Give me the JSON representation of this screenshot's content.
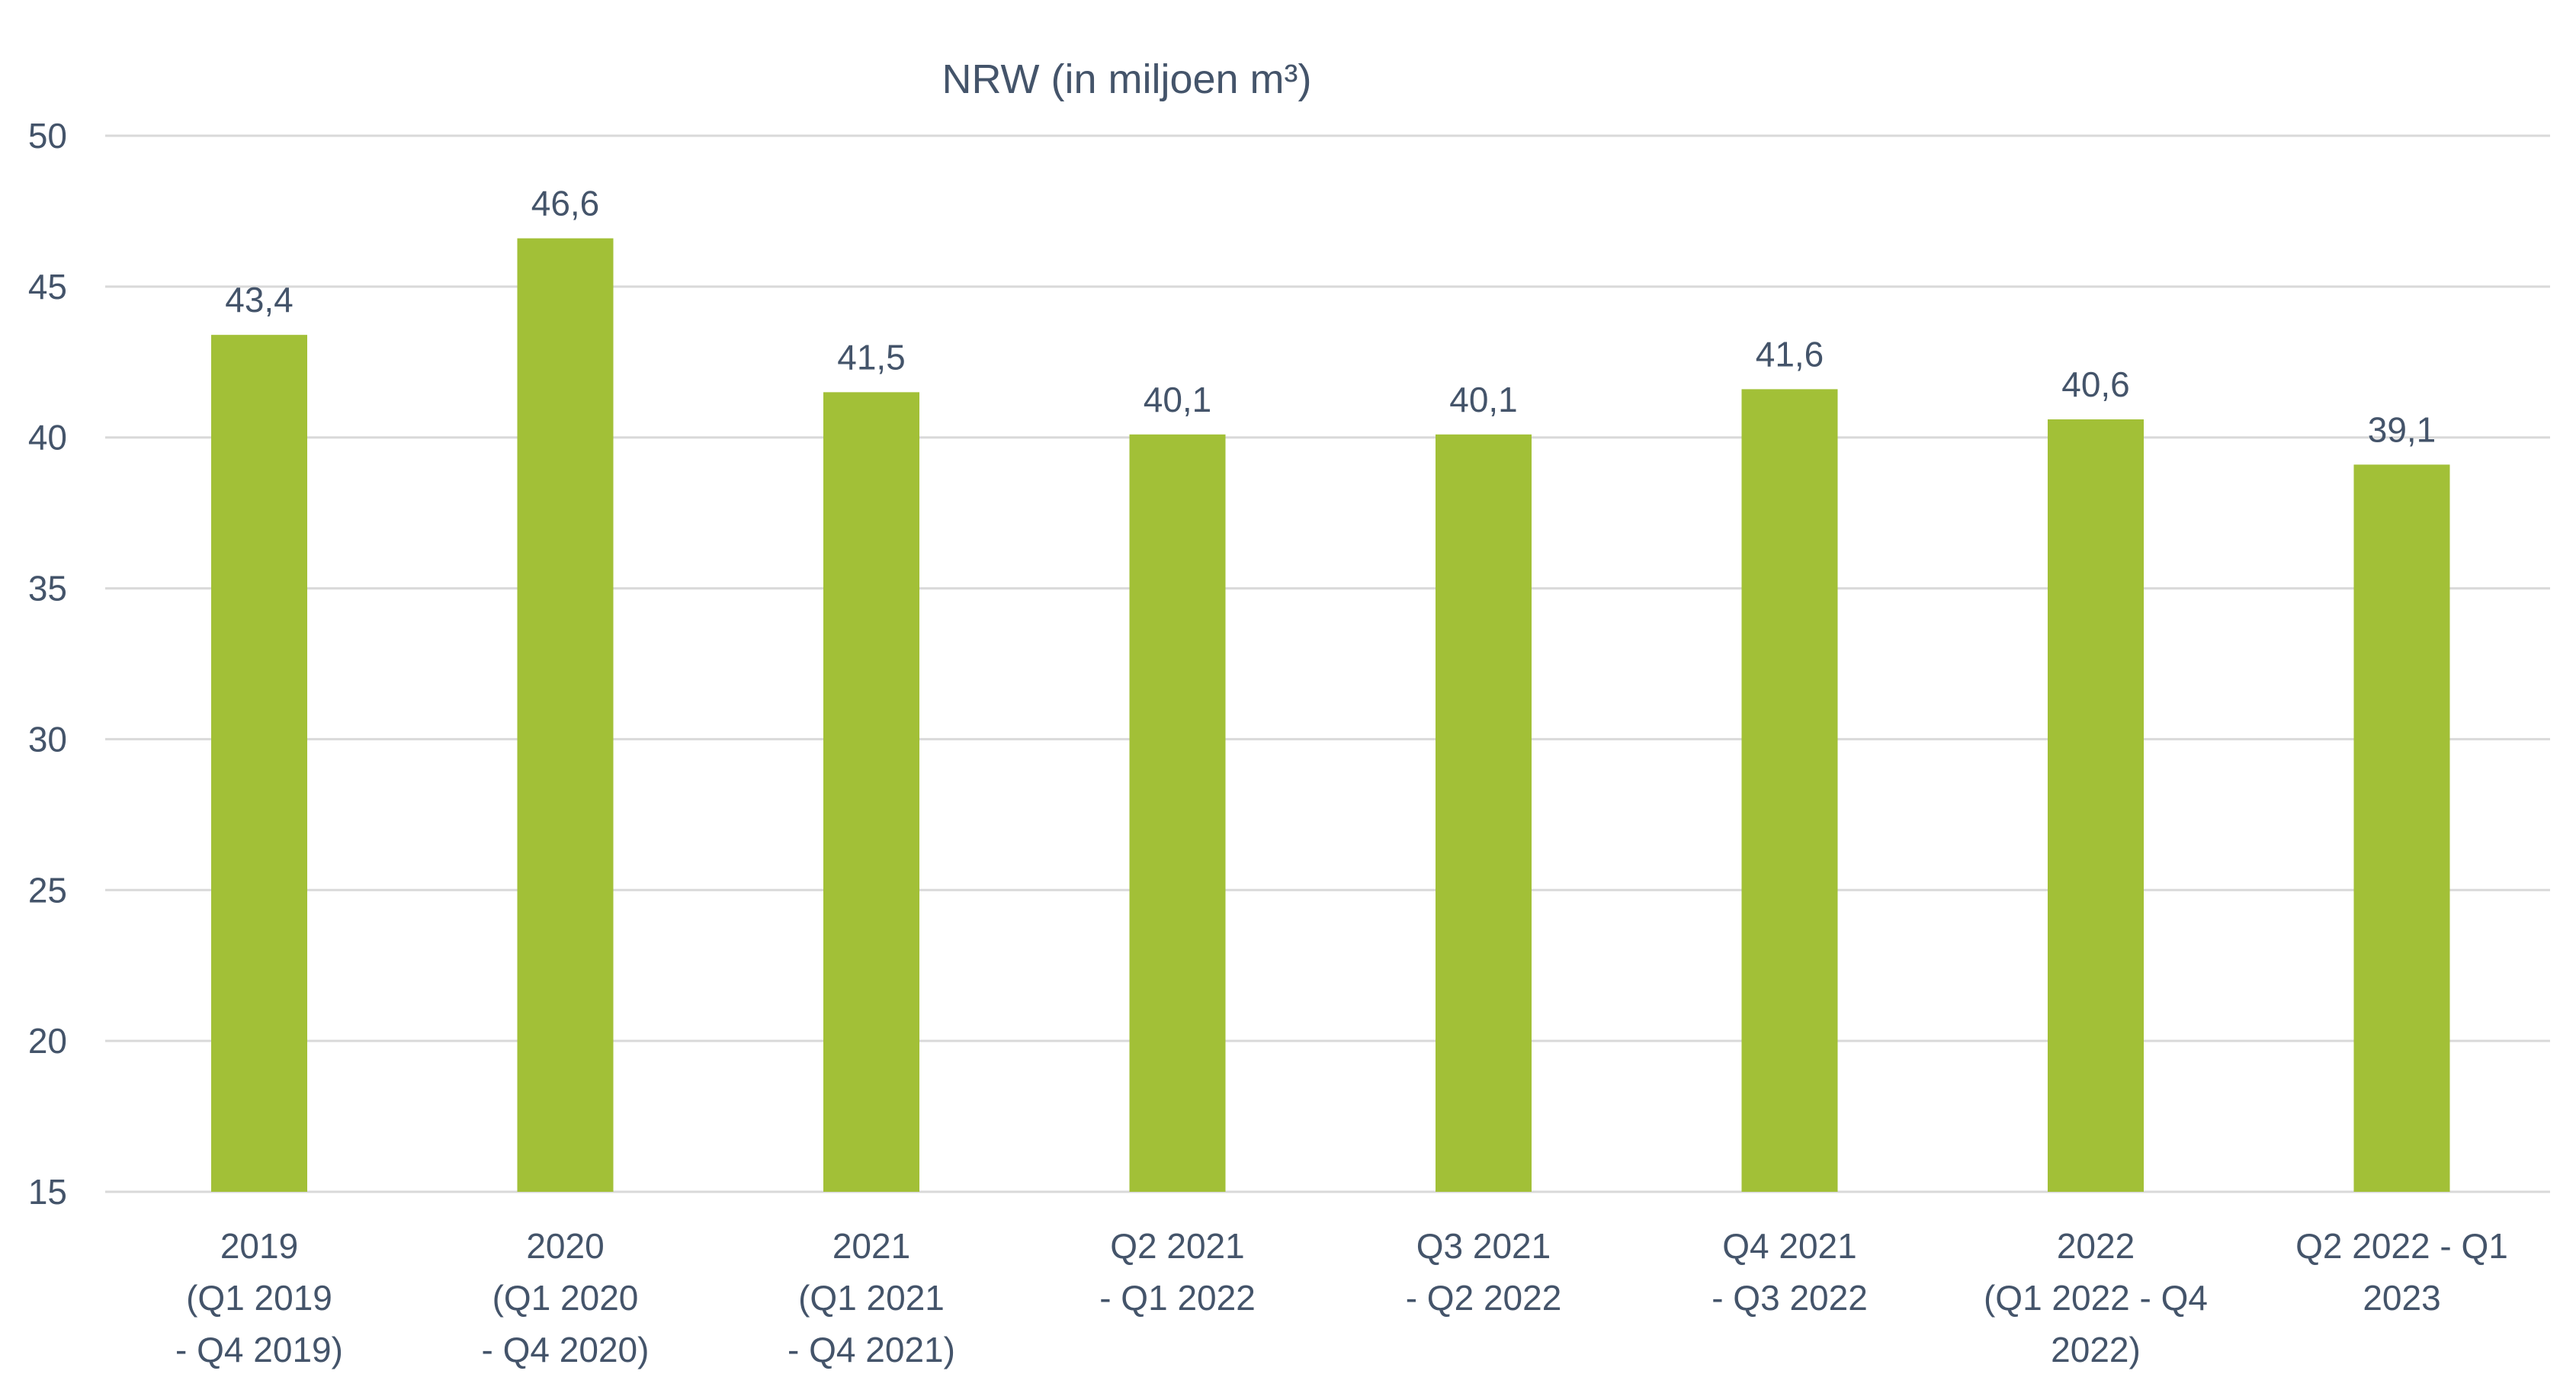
{
  "chart_data": {
    "type": "bar",
    "title": "NRW (in miljoen m³)",
    "categories": [
      [
        "2019",
        "(Q1 2019",
        "- Q4 2019)"
      ],
      [
        "2020",
        "(Q1 2020",
        "- Q4 2020)"
      ],
      [
        "2021",
        "(Q1 2021",
        "- Q4 2021)"
      ],
      [
        "Q2 2021",
        "- Q1 2022"
      ],
      [
        "Q3 2021",
        "- Q2 2022"
      ],
      [
        "Q4 2021",
        "- Q3 2022"
      ],
      [
        "2022",
        "(Q1 2022 - Q4",
        "2022)"
      ],
      [
        "Q2 2022 - Q1",
        "2023"
      ]
    ],
    "values": [
      43.4,
      46.6,
      41.5,
      40.1,
      40.1,
      41.6,
      40.6,
      39.1
    ],
    "value_labels": [
      "43,4",
      "46,6",
      "41,5",
      "40,1",
      "40,1",
      "41,6",
      "40,6",
      "39,1"
    ],
    "yticks": [
      "50",
      "45",
      "40",
      "35",
      "30",
      "25",
      "20",
      "15"
    ],
    "ylim": [
      15,
      50
    ],
    "xlabel": "",
    "ylabel": "",
    "grid": true,
    "legend": "none",
    "bar_color": "#a2c037",
    "text_color": "#44546a",
    "grid_color": "#d9d9d9"
  }
}
